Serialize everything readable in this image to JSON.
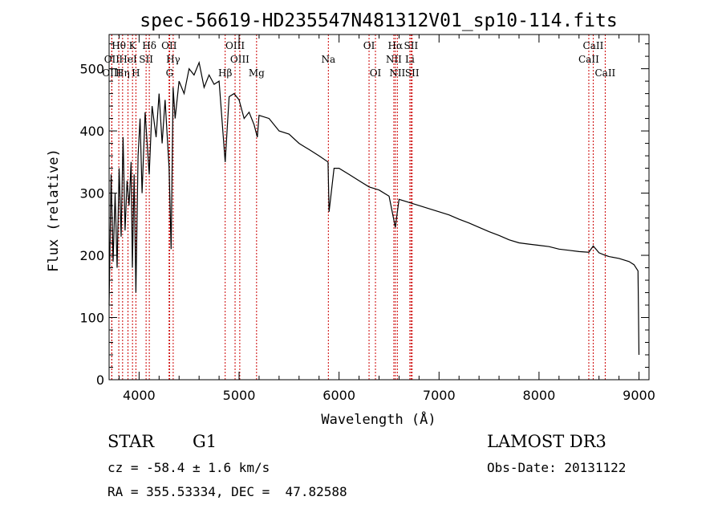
{
  "chart_data": {
    "type": "line",
    "title": "spec-56619-HD235547N481312V01_sp10-114.fits",
    "xlabel": "Wavelength (Å)",
    "ylabel": "Flux (relative)",
    "xlim": [
      3700,
      9100
    ],
    "ylim": [
      0,
      555
    ],
    "xticks": [
      4000,
      5000,
      6000,
      7000,
      8000,
      9000
    ],
    "yticks": [
      0,
      100,
      200,
      300,
      400,
      500
    ],
    "series": [
      {
        "name": "spectrum",
        "x": [
          3700,
          3720,
          3740,
          3760,
          3780,
          3800,
          3820,
          3840,
          3860,
          3880,
          3900,
          3920,
          3933,
          3950,
          3968,
          3990,
          4010,
          4030,
          4060,
          4101,
          4130,
          4170,
          4200,
          4230,
          4260,
          4300,
          4320,
          4340,
          4360,
          4400,
          4450,
          4500,
          4550,
          4600,
          4650,
          4700,
          4750,
          4800,
          4861,
          4900,
          4950,
          5000,
          5050,
          5100,
          5150,
          5183,
          5200,
          5300,
          5400,
          5500,
          5600,
          5700,
          5800,
          5890,
          5900,
          5950,
          6000,
          6100,
          6200,
          6300,
          6400,
          6500,
          6563,
          6600,
          6700,
          6800,
          6900,
          7000,
          7100,
          7200,
          7300,
          7400,
          7500,
          7600,
          7700,
          7800,
          7900,
          8000,
          8100,
          8200,
          8300,
          8400,
          8498,
          8542,
          8600,
          8662,
          8700,
          8800,
          8900,
          8950,
          8990,
          9000
        ],
        "y": [
          120,
          330,
          190,
          300,
          180,
          340,
          230,
          390,
          240,
          320,
          280,
          350,
          180,
          330,
          140,
          360,
          420,
          300,
          430,
          330,
          440,
          390,
          460,
          380,
          450,
          340,
          210,
          470,
          420,
          480,
          460,
          500,
          490,
          510,
          470,
          490,
          475,
          480,
          350,
          455,
          460,
          450,
          420,
          430,
          410,
          390,
          425,
          420,
          400,
          395,
          380,
          370,
          360,
          350,
          270,
          340,
          340,
          330,
          320,
          310,
          305,
          295,
          245,
          290,
          285,
          280,
          275,
          270,
          265,
          258,
          252,
          245,
          238,
          232,
          225,
          220,
          218,
          216,
          214,
          210,
          208,
          206,
          205,
          215,
          204,
          200,
          198,
          195,
          190,
          185,
          175,
          40
        ]
      }
    ],
    "lines": [
      {
        "name": "Hθ",
        "wl": 3797,
        "pos": "top",
        "row": 0
      },
      {
        "name": "K",
        "wl": 3934,
        "pos": "top",
        "row": 0
      },
      {
        "name": "Hδ",
        "wl": 4102,
        "pos": "top",
        "row": 0
      },
      {
        "name": "OII",
        "wl": 4300,
        "pos": "top",
        "row": 0
      },
      {
        "name": "OIII",
        "wl": 4960,
        "pos": "top",
        "row": 0
      },
      {
        "name": "OI",
        "wl": 6300,
        "pos": "top",
        "row": 0
      },
      {
        "name": "Hα",
        "wl": 6563,
        "pos": "top",
        "row": 0
      },
      {
        "name": "SII",
        "wl": 6720,
        "pos": "top",
        "row": 0
      },
      {
        "name": "CaII",
        "wl": 8542,
        "pos": "top",
        "row": 0
      },
      {
        "name": "OII",
        "wl": 3727,
        "pos": "top",
        "row": 1
      },
      {
        "name": "HeI",
        "wl": 3889,
        "pos": "top",
        "row": 1
      },
      {
        "name": "SII",
        "wl": 4070,
        "pos": "top",
        "row": 1
      },
      {
        "name": "Hγ",
        "wl": 4341,
        "pos": "top",
        "row": 1
      },
      {
        "name": "OIII",
        "wl": 5007,
        "pos": "top",
        "row": 1
      },
      {
        "name": "Na",
        "wl": 5893,
        "pos": "top",
        "row": 1
      },
      {
        "name": "NII",
        "wl": 6548,
        "pos": "top",
        "row": 1
      },
      {
        "name": "Li",
        "wl": 6708,
        "pos": "top",
        "row": 1
      },
      {
        "name": "CaII",
        "wl": 8498,
        "pos": "top",
        "row": 1
      },
      {
        "name": "OIII",
        "wl": 3727,
        "pos": "top",
        "row": 2
      },
      {
        "name": "Hη",
        "wl": 3835,
        "pos": "top",
        "row": 2
      },
      {
        "name": "H",
        "wl": 3968,
        "pos": "top",
        "row": 2
      },
      {
        "name": "G",
        "wl": 4305,
        "pos": "top",
        "row": 2
      },
      {
        "name": "Hβ",
        "wl": 4861,
        "pos": "top",
        "row": 2
      },
      {
        "name": "Mg",
        "wl": 5175,
        "pos": "top",
        "row": 2
      },
      {
        "name": "OI",
        "wl": 6364,
        "pos": "top",
        "row": 2
      },
      {
        "name": "NII",
        "wl": 6583,
        "pos": "top",
        "row": 2
      },
      {
        "name": "SII",
        "wl": 6731,
        "pos": "top",
        "row": 2
      },
      {
        "name": "CaII",
        "wl": 8662,
        "pos": "top",
        "row": 2
      }
    ]
  },
  "info": {
    "object_type": "STAR",
    "subclass": "G1",
    "survey": "LAMOST DR3",
    "cz": "cz = -58.4 ± 1.6 km/s",
    "obs_date": "Obs-Date: 20131122",
    "coords": "RA = 355.53334, DEC =  47.82588"
  }
}
